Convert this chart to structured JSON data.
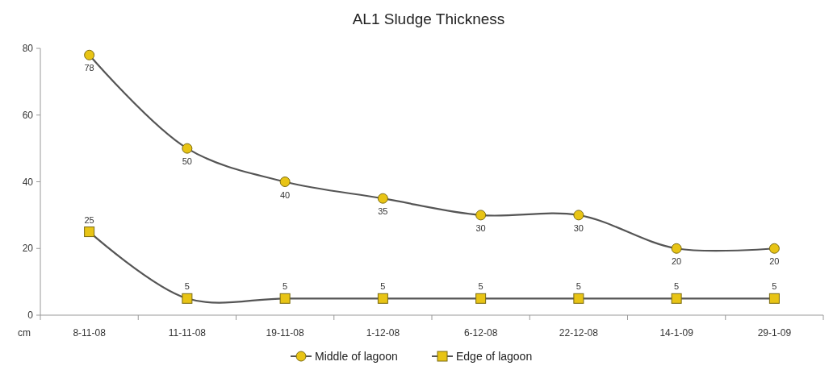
{
  "chart_data": {
    "type": "line",
    "title": "AL1 Sludge Thickness",
    "ylabel": "cm",
    "categories": [
      "8-11-08",
      "11-11-08",
      "19-11-08",
      "1-12-08",
      "6-12-08",
      "22-12-08",
      "14-1-09",
      "29-1-09"
    ],
    "series": [
      {
        "name": "Middle of lagoon",
        "color": "#e8c415",
        "marker": "circle",
        "values": [
          78,
          50,
          40,
          35,
          30,
          30,
          20,
          20
        ]
      },
      {
        "name": "Edge of lagoon",
        "color": "#e8c415",
        "marker": "square",
        "values": [
          25,
          5,
          5,
          5,
          5,
          5,
          5,
          5
        ]
      }
    ],
    "ylim": [
      0,
      80
    ],
    "yticks": [
      0,
      20,
      40,
      60,
      80
    ],
    "grid": false,
    "legend": "bottom",
    "data_labels": true
  }
}
